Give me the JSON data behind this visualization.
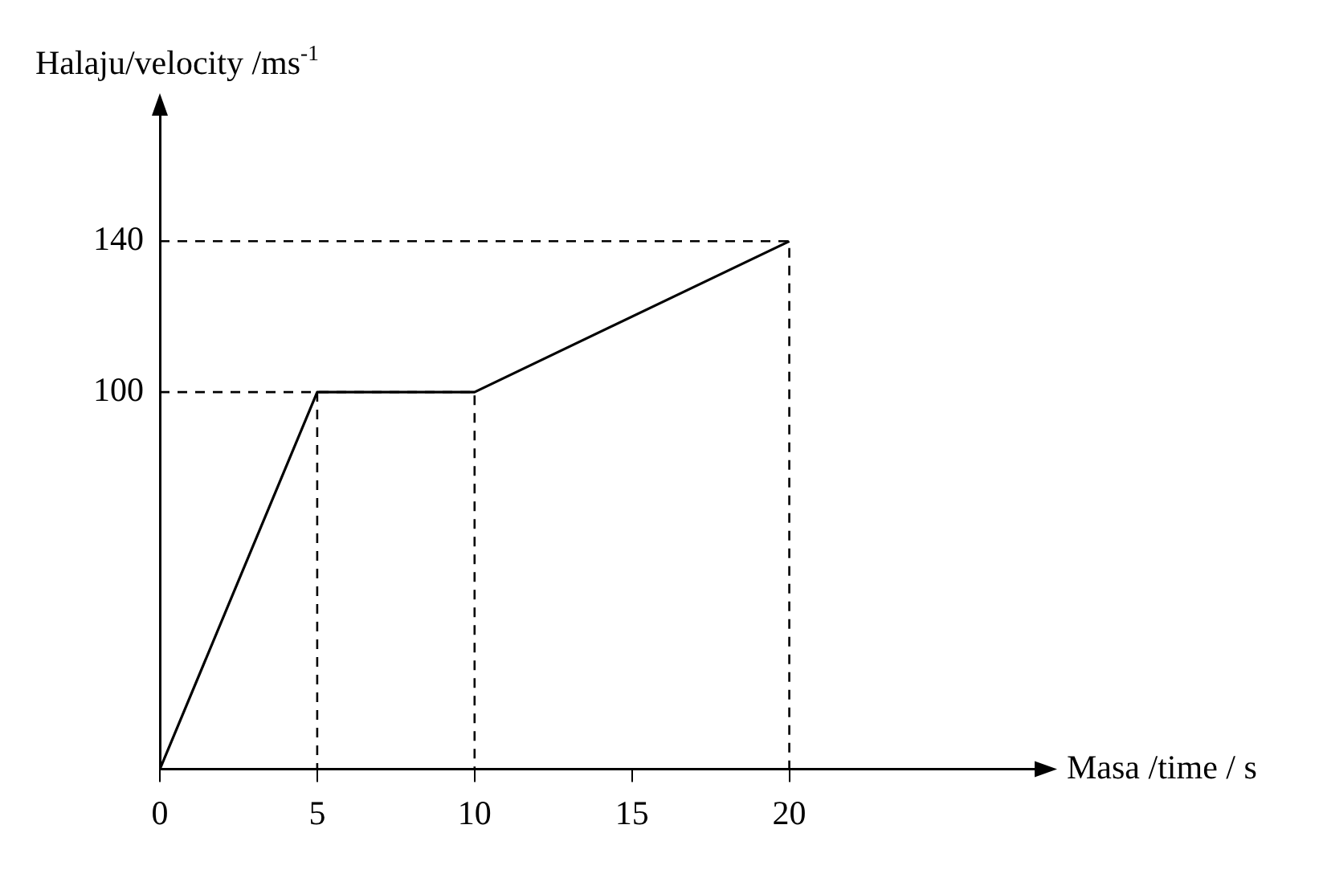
{
  "chart_data": {
    "type": "line",
    "xlabel": "Masa /time / s",
    "ylabel": "Halaju/velocity /ms$^{-1}$",
    "xlim": [
      0,
      28
    ],
    "ylim": [
      0,
      175
    ],
    "xticks": [
      0,
      5,
      10,
      15,
      20
    ],
    "yticks": [
      100,
      140
    ],
    "grid": false,
    "legend": false,
    "marker": "none",
    "series": [
      {
        "color": "#000000",
        "x": [
          0,
          5,
          10,
          20
        ],
        "values": [
          0,
          100,
          100,
          140
        ],
        "line_style": "solid"
      },
      {
        "color": "#000000",
        "x": [
          0,
          10,
          10
        ],
        "values": [
          100,
          100,
          0
        ],
        "line_style": "dashed"
      },
      {
        "color": "#000000",
        "x": [
          5,
          5
        ],
        "values": [
          100,
          0
        ],
        "line_style": "dashed"
      },
      {
        "color": "#000000",
        "x": [
          0,
          20,
          20
        ],
        "values": [
          140,
          140,
          0
        ],
        "line_style": "dashed"
      }
    ]
  }
}
